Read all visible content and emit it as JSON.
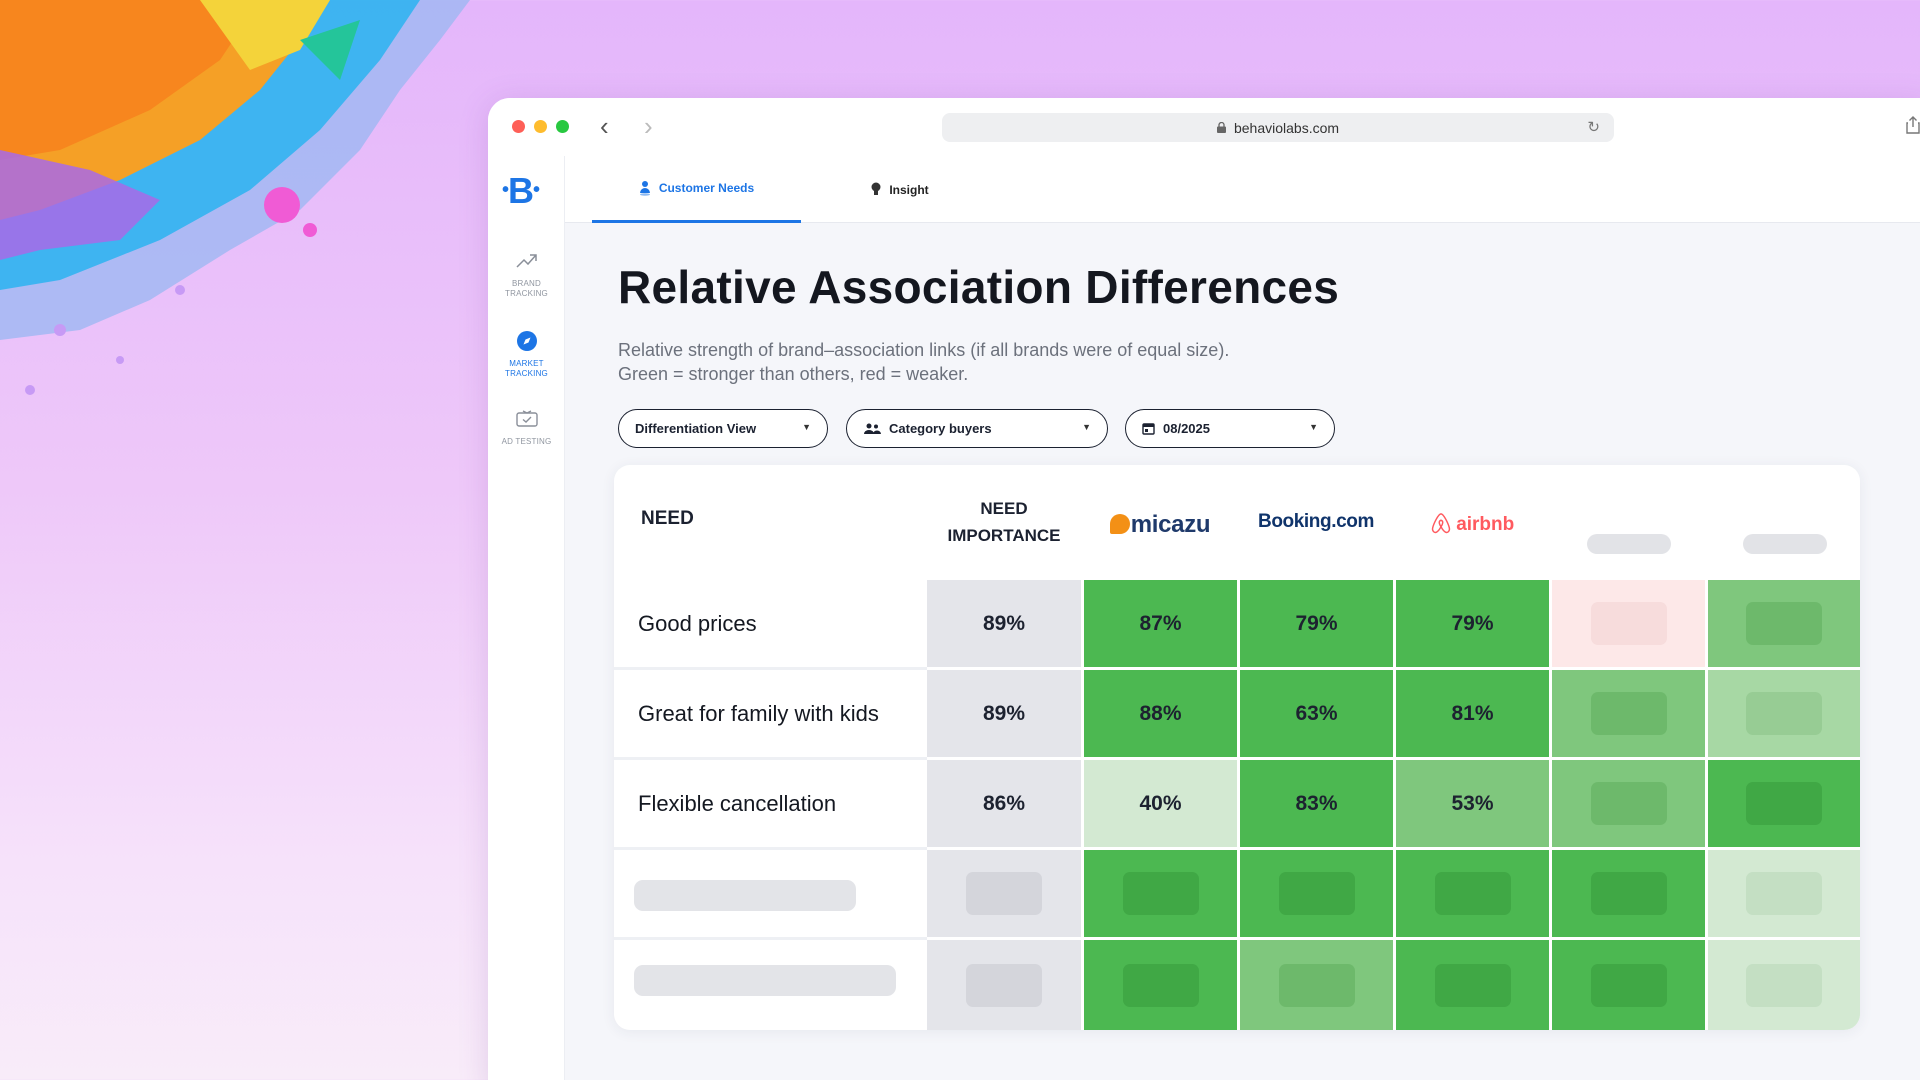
{
  "browser": {
    "url": "behaviolabs.com"
  },
  "sidebar": {
    "logo": "B",
    "items": [
      {
        "label": "BRAND TRACKING",
        "icon": "trend-up-icon",
        "active": false
      },
      {
        "label": "MARKET TRACKING",
        "icon": "compass-icon",
        "active": true
      },
      {
        "label": "AD TESTING",
        "icon": "tv-check-icon",
        "active": false
      }
    ]
  },
  "tabs": [
    {
      "label": "Customer Needs",
      "icon": "person-pin-icon",
      "active": true
    },
    {
      "label": "Insight",
      "icon": "lightbulb-icon",
      "active": false
    }
  ],
  "page": {
    "title": "Relative Association Differences",
    "subtitle": "Relative strength of brand–association links (if all brands were of equal size). Green = stronger than others, red = weaker."
  },
  "filters": {
    "view": "Differentiation View",
    "audience": "Category buyers",
    "period": "08/2025"
  },
  "table": {
    "header_need": "NEED",
    "header_importance_line1": "NEED",
    "header_importance_line2": "IMPORTANCE",
    "brands": [
      "micazu",
      "Booking.com",
      "airbnb"
    ],
    "rows": [
      {
        "need": "Good prices",
        "importance": "89%",
        "values": [
          "87%",
          "79%",
          "79%"
        ]
      },
      {
        "need": "Great for family with kids",
        "importance": "89%",
        "values": [
          "88%",
          "63%",
          "81%"
        ]
      },
      {
        "need": "Flexible cancellation",
        "importance": "86%",
        "values": [
          "40%",
          "83%",
          "53%"
        ]
      }
    ]
  },
  "colors": {
    "accent": "#1d75e5",
    "importance_bg": "#e4e5ea",
    "strong_green": "#4cb851",
    "mid_green": "#7fc77d",
    "light_green": "#a7d8a4",
    "pale_green": "#d3e9d2",
    "pale_red": "#fde8e8"
  }
}
